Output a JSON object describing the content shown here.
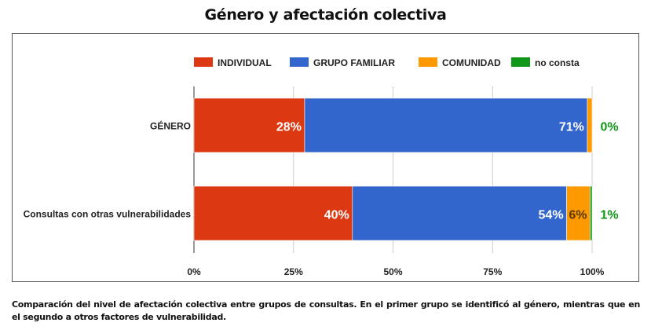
{
  "chart_data": {
    "type": "bar",
    "orientation": "horizontal",
    "stacked": "percent",
    "title": "Género y afectación colectiva",
    "categories": [
      "GÉNERO",
      "Consultas con otras vulnerabilidades"
    ],
    "series": [
      {
        "name": "INDIVIDUAL",
        "color": "#dc3912",
        "values": [
          27.8,
          39.8
        ],
        "labels": [
          "28%",
          "40%"
        ]
      },
      {
        "name": "GRUPO FAMILIAR",
        "color": "#3366cc",
        "values": [
          71.0,
          53.8
        ],
        "labels": [
          "71%",
          "54%"
        ]
      },
      {
        "name": "COMUNIDAD",
        "color": "#ff9900",
        "values": [
          1.2,
          5.9
        ],
        "labels": [
          "",
          "6%"
        ]
      },
      {
        "name": "no consta",
        "color": "#109618",
        "values": [
          0.0,
          0.5
        ],
        "labels": [
          "0%",
          "1%"
        ]
      }
    ],
    "xlim": [
      0,
      100
    ],
    "xticks": [
      "0%",
      "25%",
      "50%",
      "75%",
      "100%"
    ],
    "grid": true,
    "legend": "top"
  },
  "caption": "Comparación del nivel de afectación colectiva entre grupos de consultas. En el primer grupo se identificó al género, mientras que en el segundo a otros factores de vulnerabilidad."
}
